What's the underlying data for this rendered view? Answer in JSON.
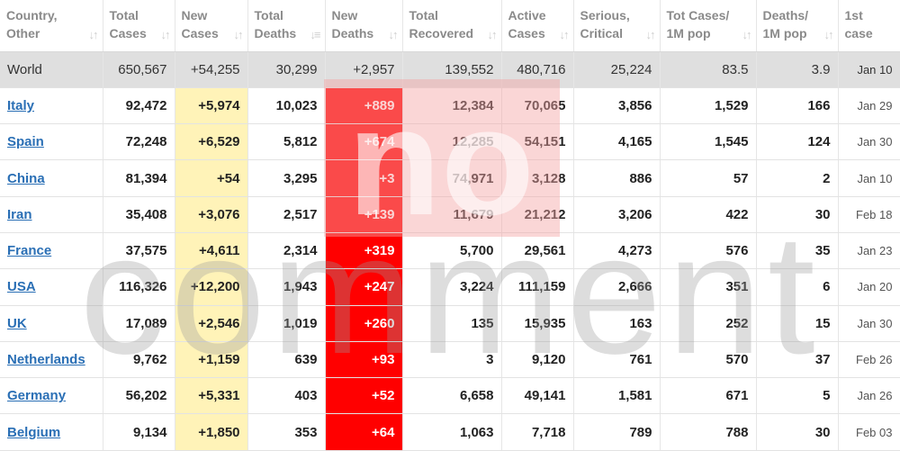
{
  "headers": [
    {
      "label": "Country,\nOther",
      "sort": "↓↑"
    },
    {
      "label": "Total\nCases",
      "sort": "↓↑"
    },
    {
      "label": "New\nCases",
      "sort": "↓↑"
    },
    {
      "label": "Total\nDeaths",
      "sort": "↓≡"
    },
    {
      "label": "New\nDeaths",
      "sort": "↓↑"
    },
    {
      "label": "Total\nRecovered",
      "sort": "↓↑"
    },
    {
      "label": "Active\nCases",
      "sort": "↓↑"
    },
    {
      "label": "Serious,\nCritical",
      "sort": "↓↑"
    },
    {
      "label": "Tot Cases/\n1M pop",
      "sort": "↓↑"
    },
    {
      "label": "Deaths/\n1M pop",
      "sort": "↓↑"
    },
    {
      "label": "1st\ncase",
      "sort": "↓↑"
    }
  ],
  "world": {
    "country": "World",
    "total_cases": "650,567",
    "new_cases": "+54,255",
    "total_deaths": "30,299",
    "new_deaths": "+2,957",
    "total_recovered": "139,552",
    "active_cases": "480,716",
    "serious": "25,224",
    "cases_per_1m": "83.5",
    "deaths_per_1m": "3.9",
    "first_case": "Jan 10"
  },
  "rows": [
    {
      "country": "Italy",
      "total_cases": "92,472",
      "new_cases": "+5,974",
      "total_deaths": "10,023",
      "new_deaths": "+889",
      "total_recovered": "12,384",
      "active_cases": "70,065",
      "serious": "3,856",
      "cases_per_1m": "1,529",
      "deaths_per_1m": "166",
      "first_case": "Jan 29"
    },
    {
      "country": "Spain",
      "total_cases": "72,248",
      "new_cases": "+6,529",
      "total_deaths": "5,812",
      "new_deaths": "+674",
      "total_recovered": "12,285",
      "active_cases": "54,151",
      "serious": "4,165",
      "cases_per_1m": "1,545",
      "deaths_per_1m": "124",
      "first_case": "Jan 30"
    },
    {
      "country": "China",
      "total_cases": "81,394",
      "new_cases": "+54",
      "total_deaths": "3,295",
      "new_deaths": "+3",
      "total_recovered": "74,971",
      "active_cases": "3,128",
      "serious": "886",
      "cases_per_1m": "57",
      "deaths_per_1m": "2",
      "first_case": "Jan 10"
    },
    {
      "country": "Iran",
      "total_cases": "35,408",
      "new_cases": "+3,076",
      "total_deaths": "2,517",
      "new_deaths": "+139",
      "total_recovered": "11,679",
      "active_cases": "21,212",
      "serious": "3,206",
      "cases_per_1m": "422",
      "deaths_per_1m": "30",
      "first_case": "Feb 18"
    },
    {
      "country": "France",
      "total_cases": "37,575",
      "new_cases": "+4,611",
      "total_deaths": "2,314",
      "new_deaths": "+319",
      "total_recovered": "5,700",
      "active_cases": "29,561",
      "serious": "4,273",
      "cases_per_1m": "576",
      "deaths_per_1m": "35",
      "first_case": "Jan 23"
    },
    {
      "country": "USA",
      "total_cases": "116,326",
      "new_cases": "+12,200",
      "total_deaths": "1,943",
      "new_deaths": "+247",
      "total_recovered": "3,224",
      "active_cases": "111,159",
      "serious": "2,666",
      "cases_per_1m": "351",
      "deaths_per_1m": "6",
      "first_case": "Jan 20"
    },
    {
      "country": "UK",
      "total_cases": "17,089",
      "new_cases": "+2,546",
      "total_deaths": "1,019",
      "new_deaths": "+260",
      "total_recovered": "135",
      "active_cases": "15,935",
      "serious": "163",
      "cases_per_1m": "252",
      "deaths_per_1m": "15",
      "first_case": "Jan 30"
    },
    {
      "country": "Netherlands",
      "total_cases": "9,762",
      "new_cases": "+1,159",
      "total_deaths": "639",
      "new_deaths": "+93",
      "total_recovered": "3",
      "active_cases": "9,120",
      "serious": "761",
      "cases_per_1m": "570",
      "deaths_per_1m": "37",
      "first_case": "Feb 26"
    },
    {
      "country": "Germany",
      "total_cases": "56,202",
      "new_cases": "+5,331",
      "total_deaths": "403",
      "new_deaths": "+52",
      "total_recovered": "6,658",
      "active_cases": "49,141",
      "serious": "1,581",
      "cases_per_1m": "671",
      "deaths_per_1m": "5",
      "first_case": "Jan 26"
    },
    {
      "country": "Belgium",
      "total_cases": "9,134",
      "new_cases": "+1,850",
      "total_deaths": "353",
      "new_deaths": "+64",
      "total_recovered": "1,063",
      "active_cases": "7,718",
      "serious": "789",
      "cases_per_1m": "788",
      "deaths_per_1m": "30",
      "first_case": "Feb 03"
    }
  ],
  "watermark": {
    "text": "comment",
    "logo": "no",
    "color": "#9a9a9a",
    "accent": "#f08080"
  }
}
